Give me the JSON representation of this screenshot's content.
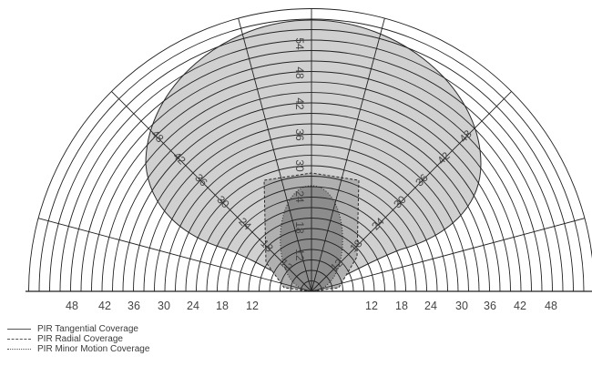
{
  "diagram": {
    "scale_labels": [
      "48",
      "42",
      "36",
      "30",
      "24",
      "18",
      "12",
      "12",
      "18",
      "24",
      "30",
      "36",
      "42",
      "48"
    ],
    "radial_labels": [
      "12",
      "18",
      "24",
      "30",
      "36",
      "42",
      "48",
      "54"
    ]
  },
  "legend": {
    "items": [
      {
        "label": "PIR Tangential Coverage",
        "style": "solid"
      },
      {
        "label": "PIR Radial Coverage",
        "style": "dashed"
      },
      {
        "label": "PIR Minor Motion Coverage",
        "style": "dotted"
      }
    ]
  },
  "colors": {
    "tangential_fill": "#d0d0d0",
    "radial_fill": "#b0b0b0",
    "minor_fill": "#8c8c8c",
    "grid": "#222222",
    "text": "#444444"
  }
}
